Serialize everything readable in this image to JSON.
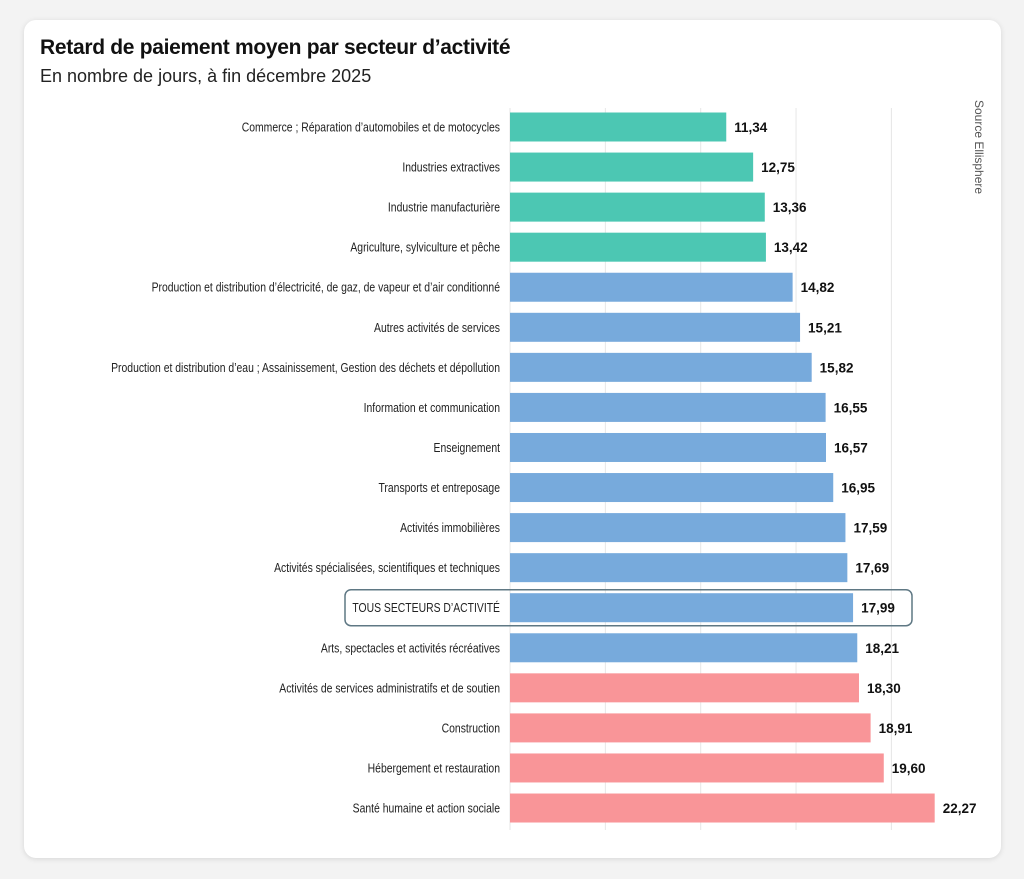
{
  "header": {
    "title": "Retard de paiement moyen par secteur d’activité",
    "subtitle": "En nombre de jours, à fin décembre 2025",
    "source": "Source Ellisphere"
  },
  "chart_data": {
    "type": "bar",
    "orientation": "horizontal",
    "title": "Retard de paiement moyen par secteur d’activité",
    "subtitle": "En nombre de jours, à fin décembre 2025",
    "xlim": [
      0,
      23
    ],
    "gridlines": [
      5,
      10,
      15,
      20
    ],
    "grid": true,
    "highlighted_category": "TOUS SECTEURS D’ACTIVITÉ",
    "colors": {
      "low": "#4cc7b3",
      "mid": "#77aadc",
      "high": "#f99598",
      "highlight_border": "#5f7884"
    },
    "categories": [
      "Commerce ; Réparation d’automobiles et de motocycles",
      "Industries extractives",
      "Industrie manufacturière",
      "Agriculture, sylviculture et pêche",
      "Production et distribution d’électricité, de gaz, de vapeur et d’air conditionné",
      "Autres activités de services",
      "Production et distribution d’eau ; Assainissement, Gestion des déchets et dépollution",
      "Information et communication",
      "Enseignement",
      "Transports et entreposage",
      "Activités immobilières",
      "Activités spécialisées, scientifiques et techniques",
      "TOUS SECTEURS D’ACTIVITÉ",
      "Arts, spectacles et activités récréatives",
      "Activités de services administratifs et de soutien",
      "Construction",
      "Hébergement et restauration",
      "Santé humaine et action sociale"
    ],
    "values": [
      11.34,
      12.75,
      13.36,
      13.42,
      14.82,
      15.21,
      15.82,
      16.55,
      16.57,
      16.95,
      17.59,
      17.69,
      17.99,
      18.21,
      18.3,
      18.91,
      19.6,
      22.27
    ],
    "value_labels": [
      "11,34",
      "12,75",
      "13,36",
      "13,42",
      "14,82",
      "15,21",
      "15,82",
      "16,55",
      "16,57",
      "16,95",
      "17,59",
      "17,69",
      "17,99",
      "18,21",
      "18,30",
      "18,91",
      "19,60",
      "22,27"
    ],
    "color_groups": [
      "low",
      "low",
      "low",
      "low",
      "mid",
      "mid",
      "mid",
      "mid",
      "mid",
      "mid",
      "mid",
      "mid",
      "mid",
      "mid",
      "high",
      "high",
      "high",
      "high"
    ]
  }
}
